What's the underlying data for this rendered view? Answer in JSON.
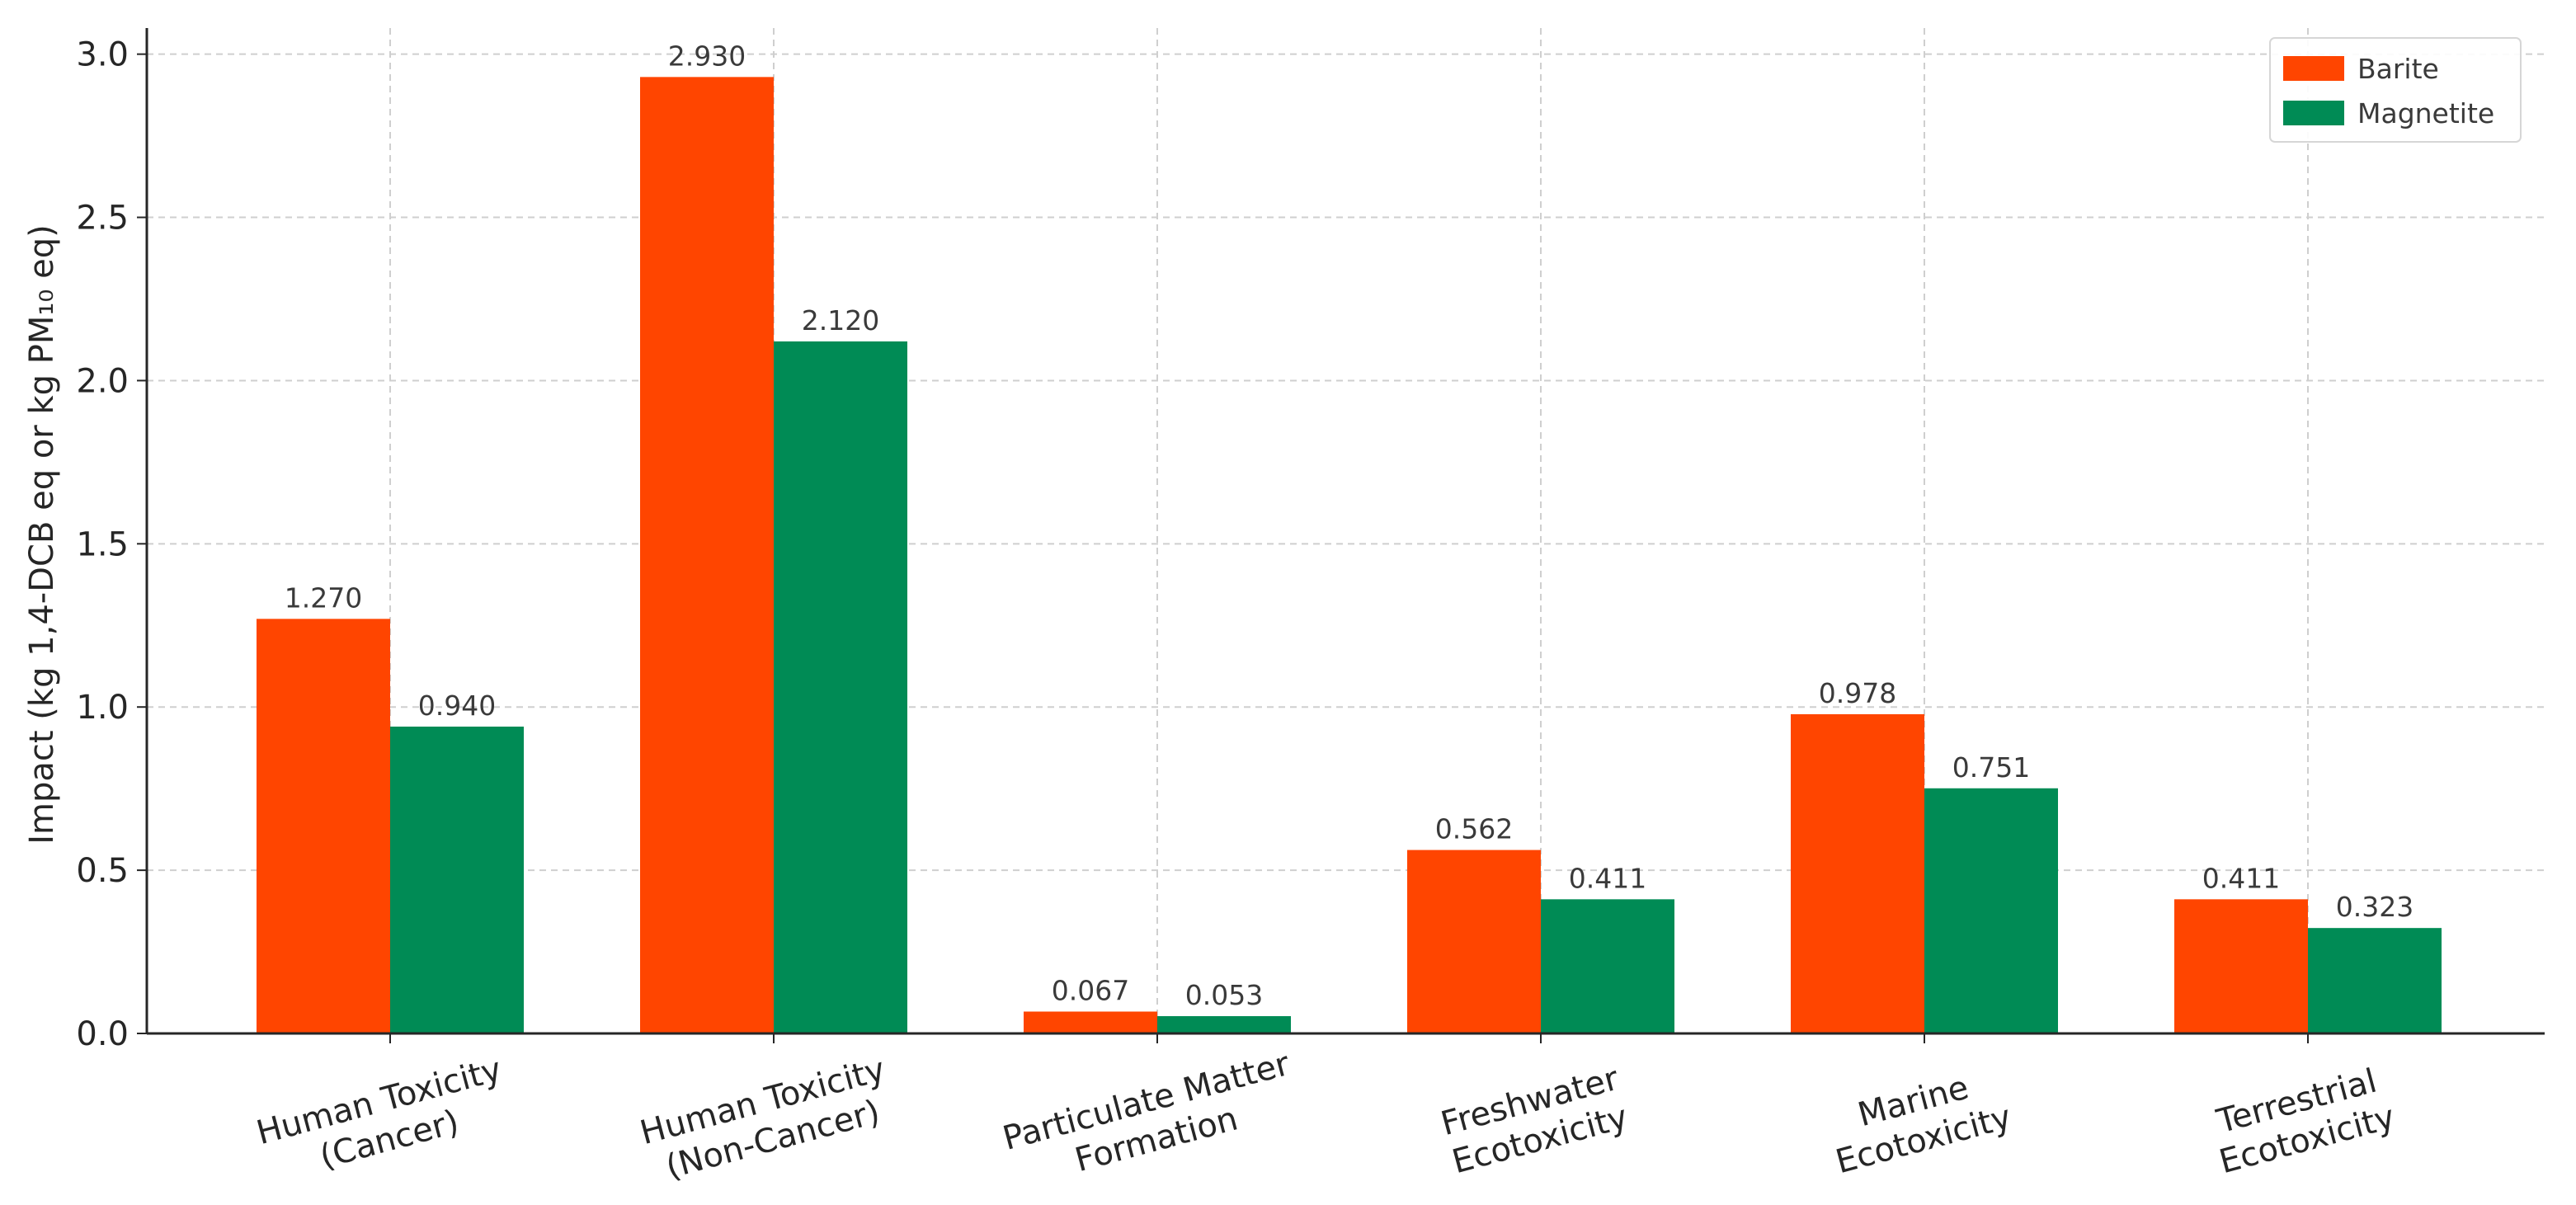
{
  "chart_data": {
    "type": "bar",
    "title": "",
    "xlabel": "",
    "ylabel": "Impact (kg 1,4-DCB eq or kg PM₁₀ eq)",
    "ylim": [
      0,
      3.08
    ],
    "yticks": [
      "0.0",
      "0.5",
      "1.0",
      "1.5",
      "2.0",
      "2.5",
      "3.0"
    ],
    "grid": true,
    "legend_position": "top-right",
    "categories": [
      [
        "Human Toxicity",
        "(Cancer)"
      ],
      [
        "Human Toxicity",
        "(Non-Cancer)"
      ],
      [
        "Particulate Matter",
        "Formation"
      ],
      [
        "Freshwater",
        "Ecotoxicity"
      ],
      [
        "Marine",
        "Ecotoxicity"
      ],
      [
        "Terrestrial",
        "Ecotoxicity"
      ]
    ],
    "series": [
      {
        "name": "Barite",
        "color": "#ff4500",
        "values": [
          1.27,
          2.93,
          0.067,
          0.562,
          0.978,
          0.411
        ],
        "labels": [
          "1.270",
          "2.930",
          "0.067",
          "0.562",
          "0.978",
          "0.411"
        ]
      },
      {
        "name": "Magnetite",
        "color": "#008b55",
        "values": [
          0.94,
          2.12,
          0.053,
          0.411,
          0.751,
          0.323
        ],
        "labels": [
          "0.940",
          "2.120",
          "0.053",
          "0.411",
          "0.751",
          "0.323"
        ]
      }
    ]
  }
}
